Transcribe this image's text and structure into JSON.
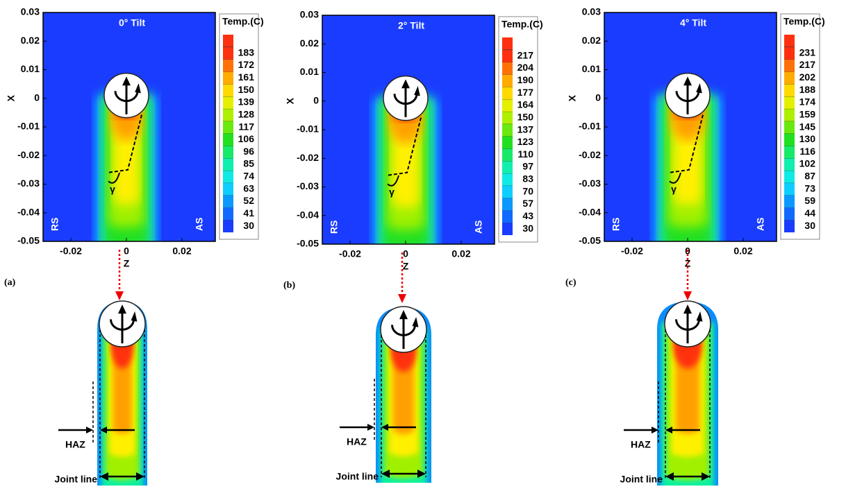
{
  "chart_data": [
    {
      "type": "contour",
      "title": "0° Tilt",
      "panel": "(a)",
      "xlabel": "Z",
      "ylabel": "X",
      "xlim": [
        -0.03,
        0.032
      ],
      "ylim": [
        -0.05,
        0.03
      ],
      "xticks": [
        -0.02,
        0,
        0.02
      ],
      "yticks": [
        -0.05,
        -0.04,
        -0.03,
        -0.02,
        -0.01,
        0,
        0.01,
        0.02,
        0.03
      ],
      "colorbar_title": "Temp.(C)",
      "levels": [
        30,
        41,
        52,
        63,
        74,
        85,
        96,
        106,
        117,
        128,
        139,
        150,
        161,
        172,
        183
      ],
      "colormap": [
        "#1a3cff",
        "#0a8cff",
        "#10e8ff",
        "#10f0a0",
        "#20e020",
        "#a0f000",
        "#fff000",
        "#ffa000",
        "#ff3010"
      ],
      "annotations": {
        "left": "RS",
        "right": "AS",
        "angle": "γ",
        "haz": "HAZ",
        "joint": "Joint line"
      }
    },
    {
      "type": "contour",
      "title": "2° Tilt",
      "panel": "(b)",
      "xlabel": "Z",
      "ylabel": "X",
      "xlim": [
        -0.03,
        0.032
      ],
      "ylim": [
        -0.05,
        0.03
      ],
      "xticks": [
        -0.02,
        0,
        0.02
      ],
      "yticks": [
        -0.05,
        -0.04,
        -0.03,
        -0.02,
        -0.01,
        0,
        0.01,
        0.02,
        0.03
      ],
      "colorbar_title": "Temp.(C)",
      "levels": [
        30,
        43,
        57,
        70,
        83,
        97,
        110,
        123,
        137,
        150,
        164,
        177,
        190,
        204,
        217
      ],
      "colormap": [
        "#1a3cff",
        "#0a8cff",
        "#10e8ff",
        "#10f0a0",
        "#20e020",
        "#a0f000",
        "#fff000",
        "#ffa000",
        "#ff3010"
      ],
      "annotations": {
        "left": "RS",
        "right": "AS",
        "angle": "γ",
        "haz": "HAZ",
        "joint": "Joint line"
      }
    },
    {
      "type": "contour",
      "title": "4° Tilt",
      "panel": "(c)",
      "xlabel": "Z",
      "ylabel": "X",
      "xlim": [
        -0.03,
        0.032
      ],
      "ylim": [
        -0.05,
        0.03
      ],
      "xticks": [
        -0.02,
        0,
        0.02
      ],
      "yticks": [
        -0.05,
        -0.04,
        -0.03,
        -0.02,
        -0.01,
        0,
        0.01,
        0.02,
        0.03
      ],
      "colorbar_title": "Temp.(C)",
      "levels": [
        30,
        44,
        59,
        73,
        87,
        102,
        116,
        130,
        145,
        159,
        174,
        188,
        202,
        217,
        231
      ],
      "colormap": [
        "#1a3cff",
        "#0a8cff",
        "#10e8ff",
        "#10f0a0",
        "#20e020",
        "#a0f000",
        "#fff000",
        "#ffa000",
        "#ff3010"
      ],
      "annotations": {
        "left": "RS",
        "right": "AS",
        "angle": "γ",
        "haz": "HAZ",
        "joint": "Joint line"
      }
    }
  ]
}
